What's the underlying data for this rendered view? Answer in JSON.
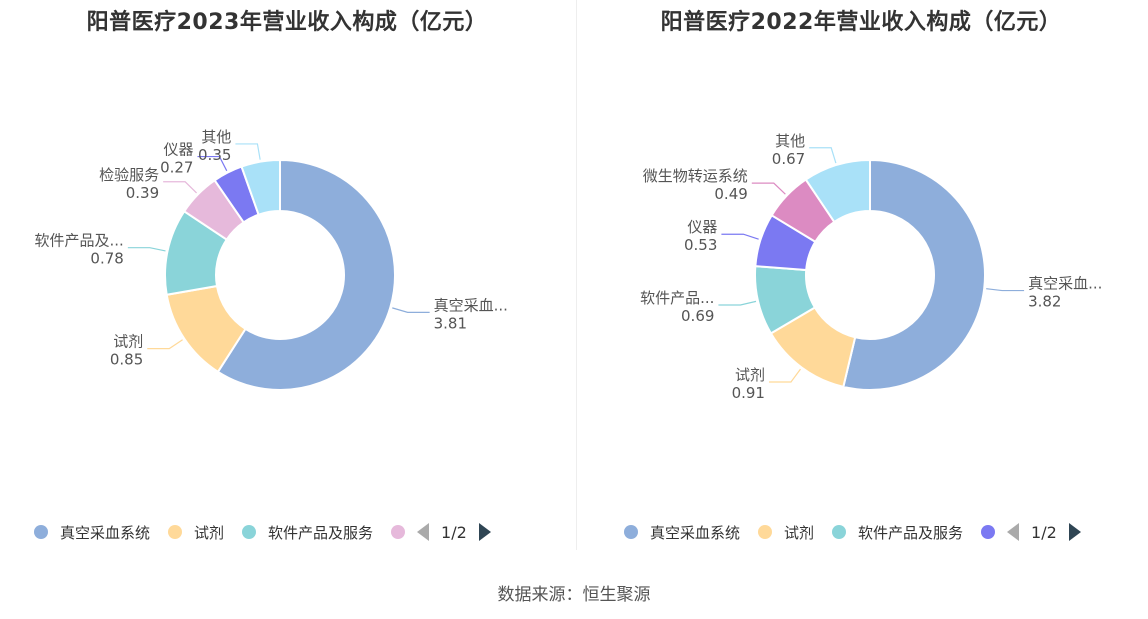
{
  "chart_data": [
    {
      "type": "pie",
      "title": "阳普医疗2023年营业收入构成（亿元）",
      "series": [
        {
          "slices": [
            {
              "name": "真空采血系统",
              "label": "真空采血...",
              "value": 3.81,
              "color": "#8eaedb"
            },
            {
              "name": "试剂",
              "label": "试剂",
              "value": 0.85,
              "color": "#ffd999"
            },
            {
              "name": "软件产品及服务",
              "label": "软件产品及...",
              "value": 0.78,
              "color": "#8ad4d9"
            },
            {
              "name": "检验服务",
              "label": "检验服务",
              "value": 0.39,
              "color": "#e6b9db"
            },
            {
              "name": "仪器",
              "label": "仪器",
              "value": 0.27,
              "color": "#7b79f2"
            },
            {
              "name": "其他",
              "label": "其他",
              "value": 0.35,
              "color": "#a9e1f8"
            }
          ]
        }
      ],
      "legend": {
        "items": [
          {
            "label": "真空采血系统",
            "color": "#8eaedb"
          },
          {
            "label": "试剂",
            "color": "#ffd999"
          },
          {
            "label": "软件产品及服务",
            "color": "#8ad4d9"
          }
        ],
        "overflow_color": "#e6b9db",
        "page": "1/2"
      }
    },
    {
      "type": "pie",
      "title": "阳普医疗2022年营业收入构成（亿元）",
      "series": [
        {
          "slices": [
            {
              "name": "真空采血系统",
              "label": "真空采血...",
              "value": 3.82,
              "color": "#8eaedb"
            },
            {
              "name": "试剂",
              "label": "试剂",
              "value": 0.91,
              "color": "#ffd999"
            },
            {
              "name": "软件产品及服务",
              "label": "软件产品...",
              "value": 0.69,
              "color": "#8ad4d9"
            },
            {
              "name": "仪器",
              "label": "仪器",
              "value": 0.53,
              "color": "#7b79f2"
            },
            {
              "name": "微生物转运系统",
              "label": "微生物转运系统",
              "value": 0.49,
              "color": "#dc8bc2"
            },
            {
              "name": "其他",
              "label": "其他",
              "value": 0.67,
              "color": "#a9e1f8"
            }
          ]
        }
      ],
      "legend": {
        "items": [
          {
            "label": "真空采血系统",
            "color": "#8eaedb"
          },
          {
            "label": "试剂",
            "color": "#ffd999"
          },
          {
            "label": "软件产品及服务",
            "color": "#8ad4d9"
          }
        ],
        "overflow_color": "#7b79f2",
        "page": "1/2"
      }
    }
  ],
  "footer": {
    "source": "数据来源：恒生聚源"
  }
}
